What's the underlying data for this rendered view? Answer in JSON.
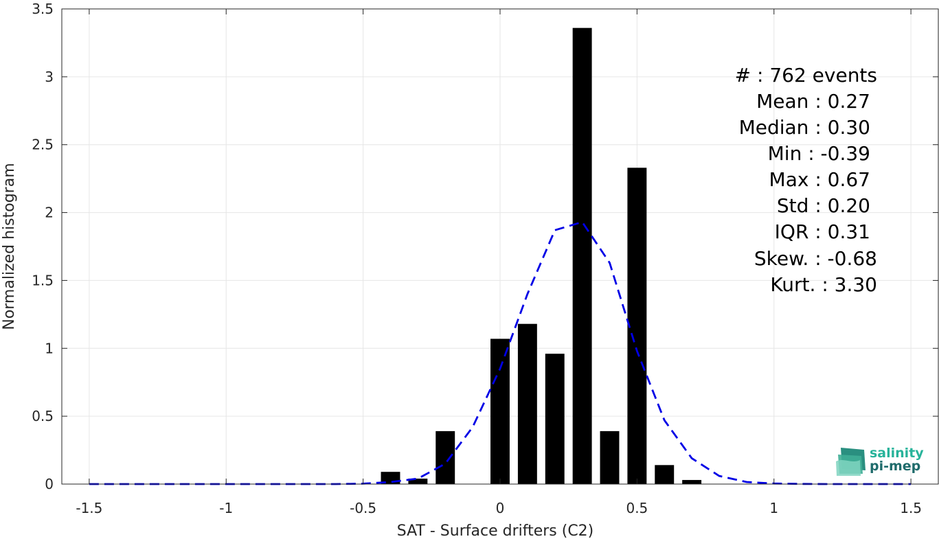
{
  "chart_data": {
    "type": "bar",
    "xlabel": "SAT - Surface drifters (C2)",
    "ylabel": "Normalized histogram",
    "xlim": [
      -1.6,
      1.6
    ],
    "ylim": [
      0,
      3.5
    ],
    "x_ticks": [
      -1.5,
      -1,
      -0.5,
      0,
      0.5,
      1,
      1.5
    ],
    "x_tick_labels": [
      "-1.5",
      "-1",
      "-0.5",
      "0",
      "0.5",
      "1",
      "1.5"
    ],
    "y_ticks": [
      0,
      0.5,
      1,
      1.5,
      2,
      2.5,
      3,
      3.5
    ],
    "y_tick_labels": [
      "0",
      "0.5",
      "1",
      "1.5",
      "2",
      "2.5",
      "3",
      "3.5"
    ],
    "grid": true,
    "bar_width": 0.07,
    "bar_color": "#000000",
    "bars": [
      {
        "x": -0.4,
        "y": 0.09
      },
      {
        "x": -0.3,
        "y": 0.04
      },
      {
        "x": -0.2,
        "y": 0.39
      },
      {
        "x": 0.0,
        "y": 1.07
      },
      {
        "x": 0.1,
        "y": 1.18
      },
      {
        "x": 0.2,
        "y": 0.96
      },
      {
        "x": 0.3,
        "y": 3.36
      },
      {
        "x": 0.4,
        "y": 0.39
      },
      {
        "x": 0.5,
        "y": 2.33
      },
      {
        "x": 0.6,
        "y": 0.14
      },
      {
        "x": 0.7,
        "y": 0.03
      }
    ],
    "fit_curve": {
      "style": "dashed",
      "color": "#0000e6",
      "x": [
        -1.5,
        -1.4,
        -1.3,
        -1.2,
        -1.1,
        -1.0,
        -0.9,
        -0.8,
        -0.7,
        -0.6,
        -0.5,
        -0.4,
        -0.3,
        -0.2,
        -0.1,
        0.0,
        0.1,
        0.2,
        0.3,
        0.4,
        0.5,
        0.6,
        0.7,
        0.8,
        0.9,
        1.0,
        1.1,
        1.2,
        1.3,
        1.4,
        1.5
      ],
      "y": [
        0,
        0,
        0,
        0,
        0,
        0,
        0,
        0,
        0,
        0,
        0.003,
        0.015,
        0.04,
        0.15,
        0.42,
        0.85,
        1.4,
        1.87,
        1.93,
        1.63,
        0.98,
        0.47,
        0.19,
        0.06,
        0.015,
        0.004,
        0.001,
        0,
        0,
        0,
        0
      ]
    },
    "annotations": [
      "#  : 762 events",
      "Mean : 0.27",
      "Median : 0.30",
      "Min : -0.39",
      "Max : 0.67",
      "Std : 0.20",
      "IQR : 0.31",
      "Skew. : -0.68",
      "Kurt. : 3.30"
    ]
  },
  "logo": {
    "line1": "salinity",
    "line2": "pi-mep",
    "color1": "#27b39a",
    "color2": "#1f6b6b"
  }
}
